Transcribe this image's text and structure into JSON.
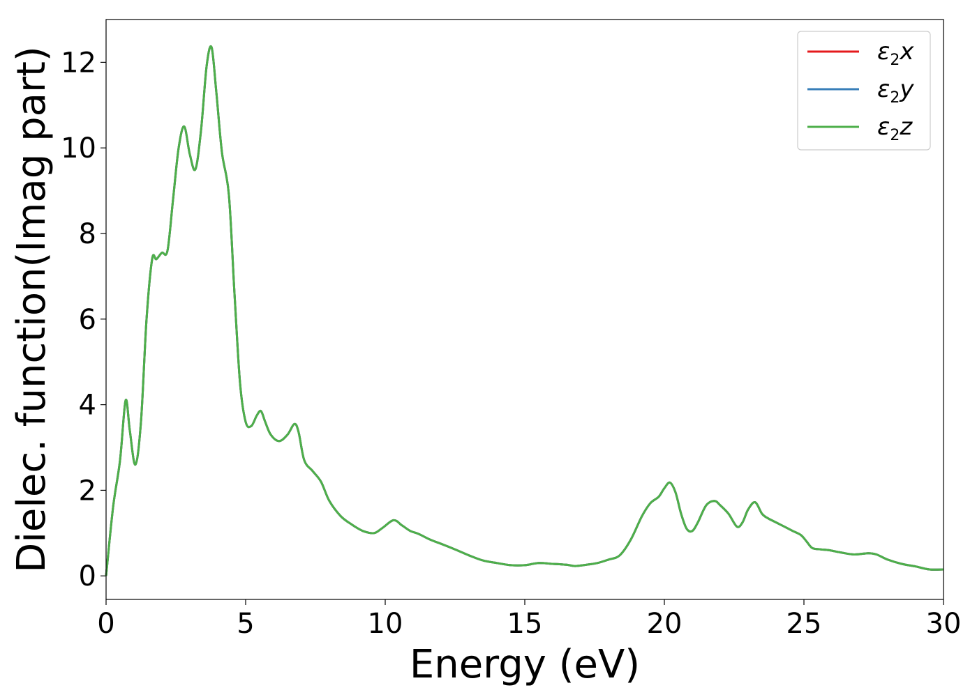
{
  "chart_data": {
    "type": "line",
    "title": "",
    "xlabel": "Energy (eV)",
    "ylabel": "Dielec. function(Imag part)",
    "xlim": [
      0,
      30
    ],
    "ylim": [
      -0.55,
      13
    ],
    "xticks": [
      0,
      5,
      10,
      15,
      20,
      25,
      30
    ],
    "yticks": [
      0,
      2,
      4,
      6,
      8,
      10,
      12
    ],
    "grid": false,
    "legend_position": "top-right",
    "series": [
      {
        "name": "ε2x",
        "symbol": "ε",
        "sub": "2",
        "axis": "x",
        "color": "#e41a1c"
      },
      {
        "name": "ε2y",
        "symbol": "ε",
        "sub": "2",
        "axis": "y",
        "color": "#377eb8"
      },
      {
        "name": "ε2z",
        "symbol": "ε",
        "sub": "2",
        "axis": "z",
        "color": "#4daf4a"
      }
    ],
    "x": [
      0,
      0.25,
      0.5,
      0.7,
      0.85,
      1.05,
      1.25,
      1.45,
      1.65,
      1.8,
      2.0,
      2.2,
      2.4,
      2.6,
      2.8,
      3.0,
      3.2,
      3.4,
      3.6,
      3.78,
      3.95,
      4.15,
      4.4,
      4.6,
      4.8,
      5.0,
      5.2,
      5.4,
      5.55,
      5.7,
      5.9,
      6.2,
      6.5,
      6.75,
      6.9,
      7.1,
      7.4,
      7.7,
      8.0,
      8.4,
      8.8,
      9.2,
      9.6,
      9.9,
      10.3,
      10.6,
      10.9,
      11.2,
      11.6,
      12.0,
      12.5,
      13.0,
      13.5,
      14.0,
      14.5,
      15.0,
      15.5,
      16.0,
      16.5,
      16.8,
      17.2,
      17.6,
      18.0,
      18.4,
      18.8,
      19.2,
      19.5,
      19.8,
      20.0,
      20.2,
      20.4,
      20.6,
      20.8,
      21.0,
      21.2,
      21.5,
      21.8,
      22.0,
      22.3,
      22.6,
      22.8,
      23.0,
      23.25,
      23.5,
      23.7,
      24.0,
      24.3,
      24.6,
      24.9,
      25.1,
      25.3,
      25.6,
      25.9,
      26.3,
      26.8,
      27.3,
      27.6,
      28.0,
      28.5,
      29.0,
      29.5,
      30.0
    ],
    "values": [
      0.0,
      1.6,
      2.7,
      4.1,
      3.4,
      2.6,
      3.6,
      6.0,
      7.4,
      7.4,
      7.55,
      7.6,
      8.8,
      10.0,
      10.5,
      9.85,
      9.5,
      10.4,
      11.9,
      12.35,
      11.3,
      9.9,
      8.9,
      6.6,
      4.5,
      3.6,
      3.5,
      3.75,
      3.85,
      3.6,
      3.3,
      3.15,
      3.3,
      3.55,
      3.35,
      2.7,
      2.45,
      2.2,
      1.75,
      1.4,
      1.2,
      1.05,
      1.0,
      1.12,
      1.3,
      1.18,
      1.05,
      0.98,
      0.85,
      0.75,
      0.62,
      0.48,
      0.36,
      0.3,
      0.25,
      0.25,
      0.3,
      0.28,
      0.26,
      0.23,
      0.26,
      0.3,
      0.38,
      0.48,
      0.85,
      1.4,
      1.7,
      1.85,
      2.05,
      2.18,
      1.95,
      1.45,
      1.1,
      1.05,
      1.25,
      1.65,
      1.75,
      1.65,
      1.45,
      1.15,
      1.25,
      1.55,
      1.72,
      1.45,
      1.35,
      1.25,
      1.15,
      1.05,
      0.95,
      0.8,
      0.65,
      0.62,
      0.6,
      0.55,
      0.5,
      0.53,
      0.5,
      0.38,
      0.28,
      0.22,
      0.15,
      0.15
    ]
  }
}
